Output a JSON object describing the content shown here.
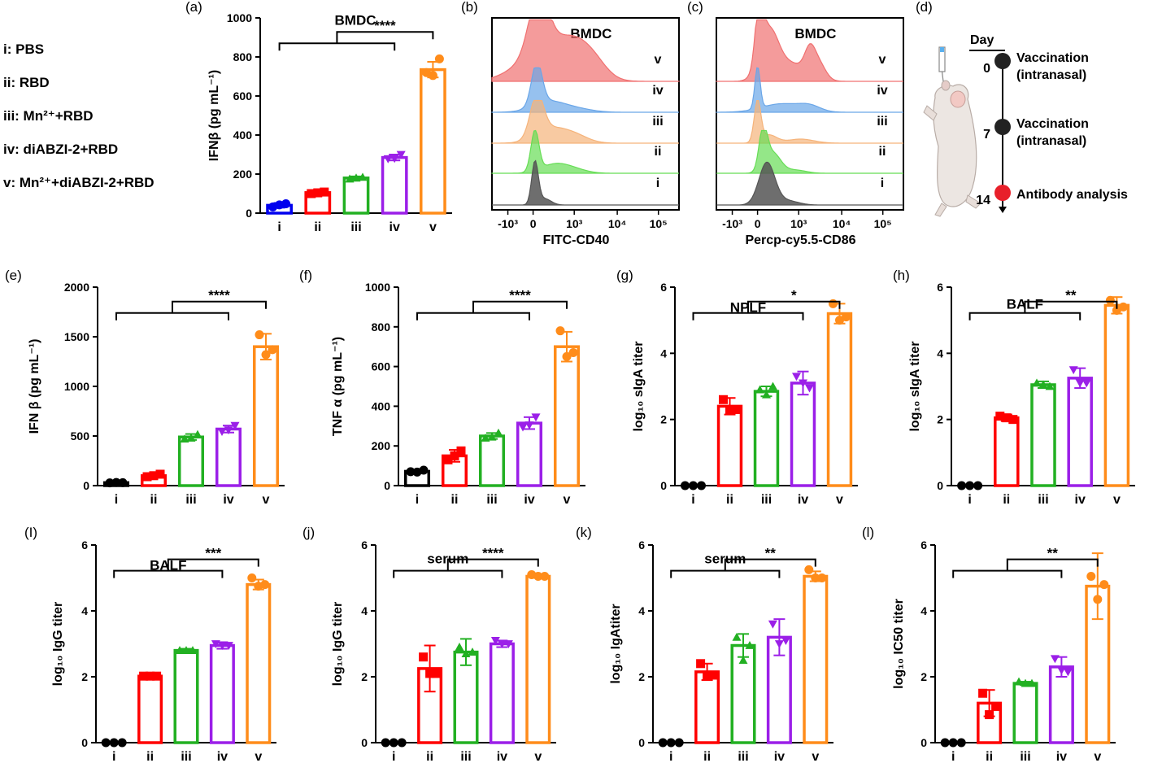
{
  "legend": [
    {
      "roman": "i",
      "text": "PBS"
    },
    {
      "roman": "ii",
      "text": "RBD"
    },
    {
      "roman": "iii",
      "text": "Mn²⁺+RBD"
    },
    {
      "roman": "iv",
      "text": "diABZI-2+RBD"
    },
    {
      "roman": "v",
      "text": "Mn²⁺+diABZI-2+RBD"
    }
  ],
  "colors": {
    "i": "#000000",
    "ii": "#ff0000",
    "iii": "#22b022",
    "iv": "#9b1fe8",
    "v": "#ff8c1a",
    "i_a": "#0000ee",
    "hist_v": "#f07070",
    "hist_iv": "#6aa6e8",
    "hist_iii": "#f5b37a",
    "hist_ii": "#66dd55",
    "hist_i": "#555555",
    "timeline_dot": "#222222",
    "timeline_red": "#e8202a"
  },
  "chart_data": [
    {
      "id": "a",
      "letter": "(a)",
      "type": "bar",
      "title": "BMDC",
      "ylabel": "IFNβ (pg mL⁻¹)",
      "categories": [
        "i",
        "ii",
        "iii",
        "iv",
        "v"
      ],
      "values": [
        40,
        105,
        180,
        285,
        735
      ],
      "errors": [
        12,
        6,
        8,
        15,
        40
      ],
      "points": [
        [
          32,
          48,
          42
        ],
        [
          100,
          108,
          104
        ],
        [
          175,
          184,
          180
        ],
        [
          278,
          300,
          280
        ],
        [
          720,
          790,
          705
        ]
      ],
      "markers": [
        "circle",
        "square",
        "triangle",
        "tri-down",
        "circle"
      ],
      "ylim": [
        0,
        1000
      ],
      "yticks": [
        0,
        200,
        400,
        600,
        800,
        1000
      ],
      "sig": "****",
      "title_y": 965
    },
    {
      "id": "e",
      "letter": "(e)",
      "type": "bar",
      "title": "",
      "ylabel": "IFN β (pg mL⁻¹)",
      "categories": [
        "i",
        "ii",
        "iii",
        "iv",
        "v"
      ],
      "values": [
        30,
        100,
        490,
        570,
        1400
      ],
      "errors": [
        8,
        15,
        30,
        35,
        130
      ],
      "points": [
        [
          28,
          30,
          32
        ],
        [
          90,
          115,
          100
        ],
        [
          470,
          515,
          480
        ],
        [
          545,
          605,
          560
        ],
        [
          1520,
          1370,
          1320
        ]
      ],
      "markers": [
        "circle",
        "square",
        "triangle",
        "tri-down",
        "circle"
      ],
      "ylim": [
        0,
        2000
      ],
      "yticks": [
        0,
        500,
        1000,
        1500,
        2000
      ],
      "sig": "****"
    },
    {
      "id": "f",
      "letter": "(f)",
      "type": "bar",
      "title": "",
      "ylabel": "TNF α (pg mL⁻¹)",
      "categories": [
        "i",
        "ii",
        "iii",
        "iv",
        "v"
      ],
      "values": [
        72,
        150,
        250,
        315,
        700
      ],
      "errors": [
        8,
        30,
        15,
        30,
        75
      ],
      "points": [
        [
          70,
          78,
          68
        ],
        [
          130,
          175,
          150
        ],
        [
          240,
          265,
          245
        ],
        [
          295,
          345,
          305
        ],
        [
          780,
          670,
          650
        ]
      ],
      "markers": [
        "circle",
        "square",
        "triangle",
        "tri-down",
        "circle"
      ],
      "ylim": [
        0,
        1000
      ],
      "yticks": [
        0,
        200,
        400,
        600,
        800,
        1000
      ],
      "sig": "****"
    },
    {
      "id": "g",
      "letter": "(g)",
      "type": "bar",
      "title": "NPLF",
      "ylabel": "log₁₀ sIgA titer",
      "categories": [
        "i",
        "ii",
        "iii",
        "iv",
        "v"
      ],
      "values": [
        0,
        2.4,
        2.85,
        3.1,
        5.2
      ],
      "errors": [
        0,
        0.25,
        0.15,
        0.35,
        0.3
      ],
      "points": [
        [
          0,
          0,
          0
        ],
        [
          2.6,
          2.3,
          2.3
        ],
        [
          2.9,
          3.0,
          2.75
        ],
        [
          3.3,
          2.95,
          3.1
        ],
        [
          5.5,
          5.1,
          5.0
        ]
      ],
      "markers": [
        "circle",
        "square",
        "triangle",
        "tri-down",
        "circle"
      ],
      "ylim": [
        0,
        6
      ],
      "yticks": [
        0,
        2,
        4,
        6
      ],
      "sig": "*",
      "title_y": 5.25
    },
    {
      "id": "h",
      "letter": "(h)",
      "type": "bar",
      "title": "BALF",
      "ylabel": "log₁₀ sIgA titer",
      "categories": [
        "i",
        "ii",
        "iii",
        "iv",
        "v"
      ],
      "values": [
        0,
        2.05,
        3.05,
        3.25,
        5.45
      ],
      "errors": [
        0,
        0.1,
        0.1,
        0.3,
        0.25
      ],
      "points": [
        [
          0,
          0,
          0
        ],
        [
          2.1,
          2.0,
          2.05
        ],
        [
          3.1,
          3.0,
          3.05
        ],
        [
          3.5,
          3.1,
          3.1
        ],
        [
          5.6,
          5.4,
          5.3
        ]
      ],
      "markers": [
        "circle",
        "square",
        "triangle",
        "tri-down",
        "circle"
      ],
      "ylim": [
        0,
        6
      ],
      "yticks": [
        0,
        2,
        4,
        6
      ],
      "sig": "**",
      "title_y": 5.35
    },
    {
      "id": "i",
      "letter": "(I)",
      "type": "bar",
      "title": "BALF",
      "ylabel": "log₁₀ IgG titer",
      "categories": [
        "i",
        "ii",
        "iii",
        "iv",
        "v"
      ],
      "values": [
        0,
        2.02,
        2.8,
        2.95,
        4.8
      ],
      "errors": [
        0,
        0.05,
        0.05,
        0.1,
        0.15
      ],
      "points": [
        [
          0,
          0,
          0
        ],
        [
          2.02,
          2.02,
          2.02
        ],
        [
          2.8,
          2.8,
          2.8
        ],
        [
          3.0,
          2.95,
          2.95
        ],
        [
          5.0,
          4.8,
          4.75
        ]
      ],
      "markers": [
        "circle",
        "square",
        "triangle",
        "tri-down",
        "circle"
      ],
      "ylim": [
        0,
        6
      ],
      "yticks": [
        0,
        2,
        4,
        6
      ],
      "sig": "***",
      "title_y": 5.25
    },
    {
      "id": "j",
      "letter": "(j)",
      "type": "bar",
      "title": "serum",
      "ylabel": "log₁₀ IgG titer",
      "categories": [
        "i",
        "ii",
        "iii",
        "iv",
        "v"
      ],
      "values": [
        0,
        2.25,
        2.75,
        3.0,
        5.05
      ],
      "errors": [
        0,
        0.7,
        0.4,
        0.1,
        0.05
      ],
      "points": [
        [
          0,
          0,
          0
        ],
        [
          2.6,
          2.1,
          2.1
        ],
        [
          2.9,
          2.75,
          2.7
        ],
        [
          3.1,
          3.0,
          3.0
        ],
        [
          5.1,
          5.05,
          5.05
        ]
      ],
      "markers": [
        "circle",
        "square",
        "triangle",
        "tri-down",
        "circle"
      ],
      "ylim": [
        0,
        6
      ],
      "yticks": [
        0,
        2,
        4,
        6
      ],
      "sig": "****",
      "title_y": 5.45
    },
    {
      "id": "k",
      "letter": "(k)",
      "type": "bar",
      "title": "serum",
      "ylabel": "log₁₀ IgAtiter",
      "categories": [
        "i",
        "ii",
        "iii",
        "iv",
        "v"
      ],
      "values": [
        0,
        2.15,
        2.95,
        3.2,
        5.05
      ],
      "errors": [
        0,
        0.25,
        0.35,
        0.55,
        0.15
      ],
      "points": [
        [
          0,
          0,
          0
        ],
        [
          2.4,
          2.05,
          2.05
        ],
        [
          3.2,
          2.95,
          2.5
        ],
        [
          3.6,
          3.1,
          3.0
        ],
        [
          5.25,
          5.0,
          5.0
        ]
      ],
      "markers": [
        "circle",
        "square",
        "triangle",
        "tri-down",
        "circle"
      ],
      "ylim": [
        0,
        6
      ],
      "yticks": [
        0,
        2,
        4,
        6
      ],
      "sig": "**",
      "title_y": 5.45
    },
    {
      "id": "l",
      "letter": "(l)",
      "type": "bar",
      "title": "",
      "ylabel": "log₁₀ IC50 titer",
      "categories": [
        "i",
        "ii",
        "iii",
        "iv",
        "v"
      ],
      "values": [
        0,
        1.2,
        1.8,
        2.3,
        4.75
      ],
      "errors": [
        0,
        0.4,
        0.05,
        0.3,
        1.0
      ],
      "points": [
        [
          0,
          0,
          0
        ],
        [
          1.5,
          1.1,
          0.85
        ],
        [
          1.85,
          1.8,
          1.8
        ],
        [
          2.55,
          2.15,
          2.2
        ],
        [
          5.05,
          4.8,
          4.35
        ]
      ],
      "markers": [
        "circle",
        "square",
        "triangle",
        "tri-down",
        "circle"
      ],
      "ylim": [
        0,
        6
      ],
      "yticks": [
        0,
        2,
        4,
        6
      ],
      "sig": "**"
    }
  ],
  "histograms": [
    {
      "id": "b",
      "letter": "(b)",
      "title": "BMDC",
      "xlabel": "FITC-CD40",
      "xticks": [
        "-10³",
        "0",
        "10³",
        "10⁴",
        "10⁵"
      ],
      "rows": [
        "v",
        "iv",
        "iii",
        "ii",
        "i"
      ]
    },
    {
      "id": "c",
      "letter": "(c)",
      "title": "BMDC",
      "xlabel": "Percp-cy5.5-CD86",
      "xticks": [
        "-10³",
        "0",
        "10³",
        "10⁴",
        "10⁵"
      ],
      "rows": [
        "v",
        "iv",
        "iii",
        "ii",
        "i"
      ]
    }
  ],
  "timeline": {
    "letter": "(d)",
    "header": "Day",
    "events": [
      {
        "day": "0",
        "lines": [
          "Vaccination",
          "(intranasal)"
        ]
      },
      {
        "day": "7",
        "lines": [
          "Vaccination",
          "(intranasal)"
        ]
      },
      {
        "day": "14",
        "lines": [
          "Antibody analysis"
        ]
      }
    ]
  }
}
